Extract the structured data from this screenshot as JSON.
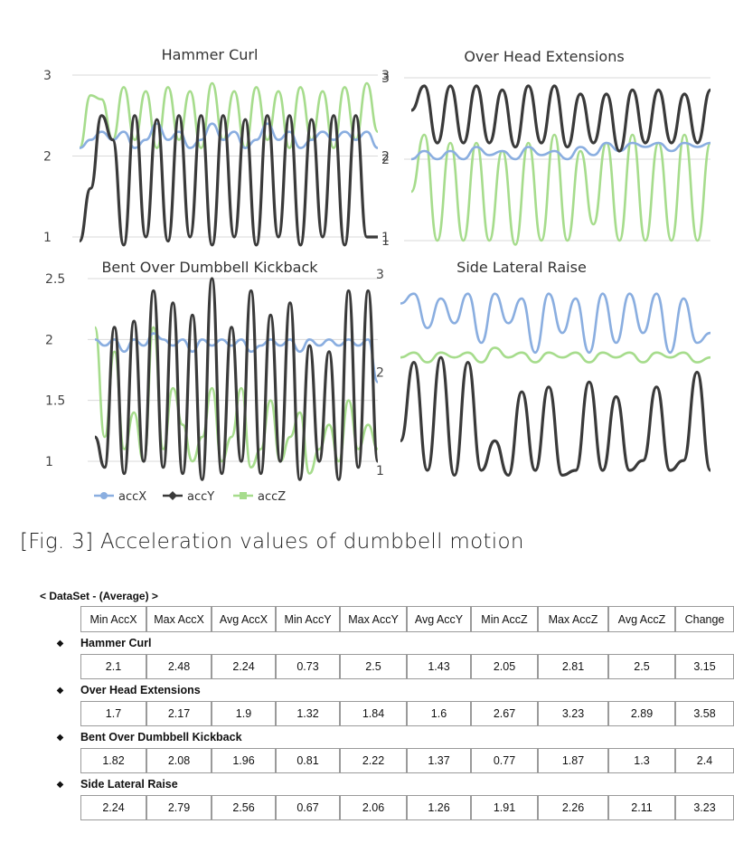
{
  "figure": {
    "caption": "[Fig. 3] Acceleration values of dumbbell motion",
    "legend": [
      {
        "label": "accX",
        "color": "#8aaee0"
      },
      {
        "label": "accY",
        "color": "#3a3a3a"
      },
      {
        "label": "accZ",
        "color": "#a6dc8c"
      }
    ]
  },
  "chart_data": [
    {
      "type": "line",
      "title": "Hammer Curl",
      "ylim": [
        1,
        3
      ],
      "yticks_left": [
        "3",
        "2",
        "1"
      ],
      "yticks_right": [
        "3",
        "2",
        "1"
      ],
      "grid": true,
      "series": [
        {
          "name": "accX",
          "values": [
            2.1,
            2.2,
            2.3,
            2.2,
            2.3,
            2.1,
            2.2,
            2.4,
            2.2,
            2.3,
            2.1,
            2.2,
            2.4,
            2.2,
            2.3,
            2.1,
            2.2,
            2.4,
            2.2,
            2.3,
            2.1,
            2.2,
            2.3,
            2.2,
            2.3,
            2.2,
            2.3,
            2.1
          ]
        },
        {
          "name": "accY",
          "values": [
            0.95,
            1.6,
            2.5,
            2.2,
            0.9,
            2.5,
            1.0,
            2.45,
            0.95,
            2.5,
            1.0,
            2.5,
            0.9,
            2.5,
            1.0,
            2.45,
            0.9,
            2.5,
            1.0,
            2.5,
            0.9,
            2.45,
            1.0,
            2.5,
            0.9,
            2.5,
            1.0,
            1.0
          ]
        },
        {
          "name": "accZ",
          "values": [
            2.1,
            2.75,
            2.7,
            2.2,
            2.85,
            2.2,
            2.8,
            2.1,
            2.85,
            2.2,
            2.8,
            2.1,
            2.9,
            2.2,
            2.8,
            2.1,
            2.85,
            2.2,
            2.8,
            2.1,
            2.85,
            2.2,
            2.8,
            2.1,
            2.85,
            2.2,
            2.9,
            2.3
          ]
        }
      ]
    },
    {
      "type": "line",
      "title": "Over Head Extensions",
      "ylim": [
        1,
        3
      ],
      "yticks_left": [
        "3",
        "2",
        "1"
      ],
      "grid": true,
      "series": [
        {
          "name": "accX",
          "values": [
            2.0,
            2.1,
            2.0,
            2.1,
            2.0,
            2.15,
            2.05,
            2.1,
            2.0,
            2.15,
            2.05,
            2.1,
            2.0,
            2.15,
            2.05,
            2.2,
            2.1,
            2.2,
            2.15,
            2.2,
            2.1,
            2.2,
            2.15,
            2.2
          ]
        },
        {
          "name": "accY",
          "values": [
            2.6,
            2.9,
            2.2,
            2.9,
            2.2,
            2.9,
            2.2,
            2.85,
            2.15,
            2.9,
            2.2,
            2.9,
            2.15,
            2.8,
            2.2,
            2.8,
            2.1,
            2.85,
            2.2,
            2.85,
            2.2,
            2.8,
            2.2,
            2.85
          ]
        },
        {
          "name": "accZ",
          "values": [
            1.6,
            2.3,
            1.0,
            2.2,
            1.0,
            2.2,
            1.0,
            2.1,
            0.95,
            2.2,
            1.0,
            2.3,
            1.0,
            2.1,
            1.2,
            2.2,
            1.0,
            2.3,
            1.0,
            2.2,
            1.0,
            2.3,
            1.0,
            2.2
          ]
        }
      ]
    },
    {
      "type": "line",
      "title": "Bent Over Dumbbell Kickback",
      "ylim": [
        1,
        2.5
      ],
      "yticks_left": [
        "2.5",
        "2",
        "1.5",
        "1"
      ],
      "grid": true,
      "series": [
        {
          "name": "accX",
          "values": [
            2.0,
            1.95,
            2.0,
            1.9,
            2.0,
            1.95,
            2.05,
            2.0,
            1.95,
            2.0,
            1.9,
            2.0,
            1.95,
            2.0,
            1.95,
            2.0,
            1.9,
            1.95,
            2.0,
            1.95,
            2.0,
            1.9,
            2.0,
            1.95,
            2.0,
            1.95,
            2.0,
            1.95,
            2.0,
            1.65
          ]
        },
        {
          "name": "accY",
          "values": [
            1.2,
            0.95,
            2.1,
            0.9,
            2.15,
            1.0,
            2.4,
            0.95,
            2.3,
            0.9,
            2.2,
            0.85,
            2.5,
            0.9,
            2.1,
            1.0,
            2.4,
            0.9,
            2.2,
            1.0,
            2.3,
            0.85,
            1.95,
            1.0,
            1.9,
            0.85,
            2.4,
            0.95,
            2.4,
            1.0
          ]
        },
        {
          "name": "accZ",
          "values": [
            2.1,
            1.2,
            1.9,
            1.1,
            1.4,
            1.0,
            2.1,
            1.1,
            1.6,
            1.3,
            1.0,
            1.2,
            1.6,
            1.0,
            1.2,
            1.6,
            0.95,
            1.1,
            1.5,
            1.0,
            1.2,
            1.4,
            0.9,
            1.1,
            1.3,
            1.0,
            1.5,
            1.1,
            1.3,
            1.1
          ]
        }
      ]
    },
    {
      "type": "line",
      "title": "Side Lateral Raise",
      "ylim": [
        1,
        3
      ],
      "yticks_left": [
        "3",
        "2",
        "1"
      ],
      "grid": false,
      "series": [
        {
          "name": "accX",
          "values": [
            2.7,
            2.8,
            2.45,
            2.75,
            2.5,
            2.8,
            2.3,
            2.8,
            2.5,
            2.75,
            2.2,
            2.8,
            2.4,
            2.75,
            2.2,
            2.8,
            2.3,
            2.8,
            2.4,
            2.8,
            2.2,
            2.75,
            2.3,
            2.4
          ]
        },
        {
          "name": "accY",
          "values": [
            1.3,
            2.1,
            1.0,
            2.15,
            0.95,
            2.1,
            1.0,
            1.3,
            0.95,
            1.8,
            1.0,
            1.85,
            0.95,
            1.0,
            1.9,
            1.0,
            1.75,
            1.0,
            1.1,
            1.85,
            1.0,
            1.1,
            2.0,
            1.0
          ]
        },
        {
          "name": "accZ",
          "values": [
            2.15,
            2.2,
            2.1,
            2.2,
            2.15,
            2.2,
            2.1,
            2.25,
            2.15,
            2.2,
            2.1,
            2.2,
            2.15,
            2.2,
            2.1,
            2.2,
            2.15,
            2.2,
            2.1,
            2.2,
            2.15,
            2.2,
            2.1,
            2.15
          ]
        }
      ]
    }
  ],
  "dataset": {
    "title": "< DataSet - (Average) >",
    "columns": [
      "Min AccX",
      "Max AccX",
      "Avg AccX",
      "Min AccY",
      "Max AccY",
      "Avg AccY",
      "Min AccZ",
      "Max AccZ",
      "Avg AccZ",
      "Change"
    ],
    "bullet": "◆",
    "groups": [
      {
        "name": "Hammer Curl",
        "values": [
          "2.1",
          "2.48",
          "2.24",
          "0.73",
          "2.5",
          "1.43",
          "2.05",
          "2.81",
          "2.5",
          "3.15"
        ]
      },
      {
        "name": "Over Head Extensions",
        "values": [
          "1.7",
          "2.17",
          "1.9",
          "1.32",
          "1.84",
          "1.6",
          "2.67",
          "3.23",
          "2.89",
          "3.58"
        ]
      },
      {
        "name": "Bent Over Dumbbell Kickback",
        "values": [
          "1.82",
          "2.08",
          "1.96",
          "0.81",
          "2.22",
          "1.37",
          "0.77",
          "1.87",
          "1.3",
          "2.4"
        ]
      },
      {
        "name": "Side Lateral Raise",
        "values": [
          "2.24",
          "2.79",
          "2.56",
          "0.67",
          "2.06",
          "1.26",
          "1.91",
          "2.26",
          "2.11",
          "3.23"
        ]
      }
    ]
  }
}
